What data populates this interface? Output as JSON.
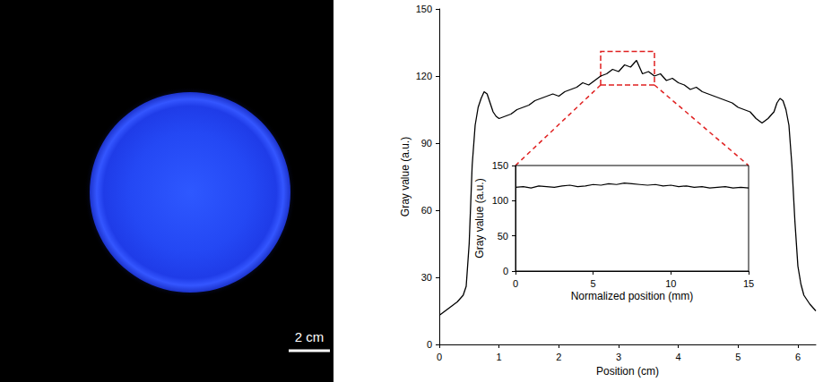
{
  "photo": {
    "scale_bar": "2 cm"
  },
  "chart_data": [
    {
      "type": "line",
      "x_label": "Position (cm)",
      "y_label": "Gray value (a.u.)",
      "color": "#000000",
      "grid": false,
      "xlim": [
        0,
        6.3
      ],
      "xticks": [
        0,
        1,
        2,
        3,
        4,
        5,
        6
      ],
      "ylim": [
        0,
        150
      ],
      "yticks": [
        0,
        30,
        60,
        90,
        120,
        150
      ],
      "x": [
        0,
        0.1,
        0.2,
        0.3,
        0.4,
        0.45,
        0.5,
        0.55,
        0.6,
        0.65,
        0.7,
        0.75,
        0.8,
        0.85,
        0.9,
        0.95,
        1.0,
        1.1,
        1.2,
        1.3,
        1.4,
        1.5,
        1.6,
        1.7,
        1.8,
        1.9,
        2.0,
        2.1,
        2.2,
        2.3,
        2.4,
        2.5,
        2.6,
        2.7,
        2.8,
        2.9,
        3.0,
        3.1,
        3.2,
        3.3,
        3.4,
        3.5,
        3.6,
        3.7,
        3.8,
        3.9,
        4.0,
        4.1,
        4.2,
        4.3,
        4.4,
        4.5,
        4.6,
        4.7,
        4.8,
        4.9,
        5.0,
        5.1,
        5.2,
        5.3,
        5.4,
        5.5,
        5.6,
        5.65,
        5.7,
        5.75,
        5.8,
        5.85,
        5.9,
        5.95,
        6.0,
        6.05,
        6.1,
        6.2,
        6.3
      ],
      "values": [
        13,
        15,
        17,
        19,
        22,
        26,
        45,
        80,
        98,
        106,
        110,
        113,
        112,
        108,
        104,
        102,
        101,
        102,
        103,
        105,
        106,
        107,
        109,
        110,
        111,
        112,
        111,
        113,
        114,
        115,
        117,
        116,
        118,
        120,
        121,
        123,
        122,
        125,
        124,
        127,
        121,
        122,
        120,
        121,
        118,
        119,
        117,
        116,
        114,
        115,
        113,
        112,
        111,
        110,
        109,
        108,
        106,
        105,
        104,
        101,
        99,
        101,
        104,
        108,
        110,
        109,
        105,
        98,
        80,
        55,
        35,
        27,
        22,
        18,
        15
      ],
      "inset_region": {
        "x": [
          2.7,
          3.6
        ],
        "y": [
          116,
          131
        ]
      }
    },
    {
      "type": "line",
      "x_label": "Normalized position (mm)",
      "y_label": "Gray value (a.u.)",
      "color": "#000000",
      "grid": false,
      "xlim": [
        0,
        15
      ],
      "xticks": [
        0,
        5,
        10,
        15
      ],
      "ylim": [
        0,
        150
      ],
      "yticks": [
        0,
        50,
        100,
        150
      ],
      "x": [
        0,
        0.5,
        1,
        1.5,
        2,
        2.5,
        3,
        3.5,
        4,
        4.5,
        5,
        5.5,
        6,
        6.5,
        7,
        7.5,
        8,
        8.5,
        9,
        9.5,
        10,
        10.5,
        11,
        11.5,
        12,
        12.5,
        13,
        13.5,
        14,
        14.5,
        15
      ],
      "values": [
        119,
        120,
        118,
        121,
        120,
        119,
        121,
        122,
        120,
        121,
        123,
        122,
        124,
        123,
        125,
        124,
        123,
        122,
        123,
        121,
        122,
        120,
        121,
        119,
        120,
        118,
        119,
        120,
        118,
        119,
        118
      ]
    }
  ]
}
